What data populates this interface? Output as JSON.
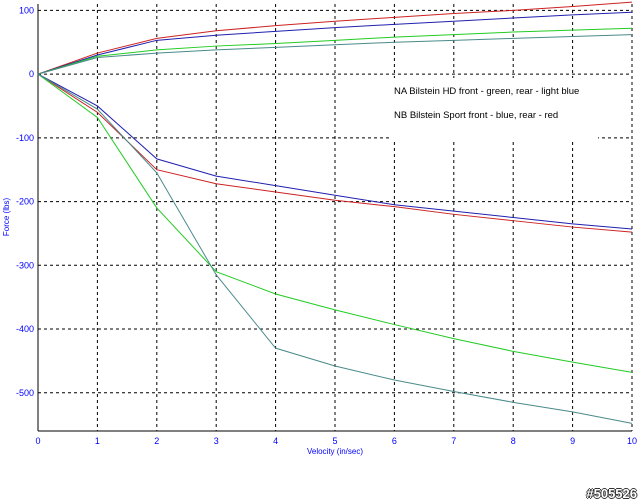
{
  "chart_data": {
    "type": "line",
    "xlabel": "Velocity (in/sec)",
    "ylabel": "Force (lbs)",
    "xlim": [
      0,
      10
    ],
    "ylim": [
      -560,
      110
    ],
    "x_ticks": [
      0,
      1,
      2,
      3,
      4,
      5,
      6,
      7,
      8,
      9,
      10
    ],
    "y_ticks": [
      100,
      0,
      -100,
      -200,
      -300,
      -400,
      -500
    ],
    "grid": true,
    "x": [
      0,
      1,
      2,
      3,
      4,
      5,
      6,
      7,
      8,
      9,
      10
    ],
    "annotations": [
      "NA Bilstein HD front - green, rear - light blue",
      "NB Bilstein Sport front - blue, rear - red"
    ],
    "series": [
      {
        "color": "#cc2222",
        "values": [
          0,
          33,
          56,
          68,
          76,
          83,
          89,
          95,
          100,
          106,
          113
        ]
      },
      {
        "color": "#2020b0",
        "values": [
          0,
          30,
          53,
          61,
          67,
          73,
          78,
          83,
          88,
          93,
          97
        ]
      },
      {
        "color": "#22cc22",
        "values": [
          0,
          28,
          38,
          44,
          48,
          53,
          58,
          62,
          66,
          69,
          72
        ]
      },
      {
        "color": "#4a8a8a",
        "values": [
          0,
          26,
          33,
          38,
          42,
          46,
          50,
          53,
          56,
          59,
          62
        ]
      },
      {
        "color": "#2020b0",
        "values": [
          0,
          -50,
          -133,
          -160,
          -175,
          -190,
          -205,
          -215,
          -225,
          -235,
          -243
        ]
      },
      {
        "color": "#cc2222",
        "values": [
          0,
          -60,
          -150,
          -172,
          -185,
          -198,
          -208,
          -220,
          -230,
          -240,
          -248
        ]
      },
      {
        "color": "#22cc22",
        "values": [
          0,
          -68,
          -210,
          -310,
          -345,
          -370,
          -393,
          -415,
          -435,
          -452,
          -468
        ]
      },
      {
        "color": "#4a8a8a",
        "values": [
          0,
          -55,
          -155,
          -315,
          -430,
          -458,
          -480,
          -498,
          -515,
          -530,
          -548
        ]
      }
    ]
  },
  "watermark": "#505526"
}
